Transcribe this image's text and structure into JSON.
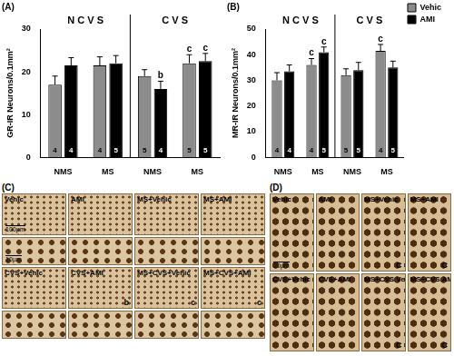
{
  "chart_data": [
    {
      "type": "bar",
      "title": "(A)",
      "y_label": "GR-IR Neurons/0.1mm²",
      "group_labels": [
        "N C V S",
        "C V S"
      ],
      "categories": [
        "NMS",
        "MS",
        "NMS",
        "MS"
      ],
      "series": [
        {
          "name": "Vehic",
          "color": "#8c8c8c",
          "values": [
            17,
            21.5,
            19,
            22
          ],
          "errors": [
            2,
            2,
            1.5,
            2
          ],
          "n": [
            4,
            4,
            5,
            5
          ],
          "marks": [
            null,
            null,
            null,
            "c"
          ]
        },
        {
          "name": "AMI",
          "color": "#000000",
          "values": [
            21.5,
            22,
            16,
            22.5
          ],
          "errors": [
            1.8,
            1.8,
            1.8,
            1.8
          ],
          "n": [
            4,
            5,
            4,
            5
          ],
          "marks": [
            null,
            null,
            "b",
            "c"
          ]
        }
      ],
      "ylim": [
        0,
        30
      ],
      "yticks": [
        0,
        10,
        20,
        30
      ],
      "grid": false
    },
    {
      "type": "bar",
      "title": "(B)",
      "y_label": "MR-IR Neurons/0.1mm²",
      "group_labels": [
        "N C V S",
        "C V S"
      ],
      "categories": [
        "NMS",
        "MS",
        "NMS",
        "MS"
      ],
      "series": [
        {
          "name": "Vehic",
          "color": "#8c8c8c",
          "values": [
            30,
            36,
            32,
            41.5
          ],
          "errors": [
            3,
            2.5,
            2.5,
            2.5
          ],
          "n": [
            4,
            4,
            5,
            4
          ],
          "marks": [
            null,
            "c",
            null,
            "c"
          ]
        },
        {
          "name": "AMI",
          "color": "#000000",
          "values": [
            33.5,
            41,
            34,
            35
          ],
          "errors": [
            2.5,
            2,
            3,
            2.5
          ],
          "n": [
            4,
            5,
            5,
            5
          ],
          "marks": [
            null,
            "c",
            null,
            null
          ]
        }
      ],
      "ylim": [
        0,
        50
      ],
      "yticks": [
        0,
        10,
        20,
        30,
        40,
        50
      ],
      "grid": false,
      "legend": "top-right"
    }
  ],
  "micrographs": [
    {
      "title": "(C)",
      "rows": [
        [
          {
            "label": "Vehic",
            "scale_bar": "100µm"
          },
          {
            "label": "AMI"
          },
          {
            "label": "MS+Vehic"
          },
          {
            "label": "MS+AMI"
          }
        ],
        [
          {
            "scale_bar": "10µm"
          },
          {},
          {},
          {}
        ],
        [
          {
            "label": "CVS+Vehic"
          },
          {
            "label": "CVS+AMI",
            "mark": "b"
          },
          {
            "label": "MS+CVS+Vehic",
            "mark": "c"
          },
          {
            "label": "MS+CVS+AMI",
            "mark": "c"
          }
        ],
        [
          {},
          {},
          {},
          {}
        ]
      ]
    },
    {
      "title": "(D)",
      "rows": [
        [
          {
            "label": "Vehic",
            "scale_bar": "20µm"
          },
          {
            "label": "AMI"
          },
          {
            "label": "MS+Vehic",
            "mark": "C"
          },
          {
            "label": "MS+AMI",
            "mark": "C"
          }
        ],
        [
          {
            "label": "CVS+Vehic"
          },
          {
            "label": "CVS+AMI"
          },
          {
            "label": "MS+CVS Vehic",
            "mark": "C"
          },
          {
            "label": "MS+CVS AMI",
            "mark": "C"
          }
        ]
      ]
    }
  ]
}
